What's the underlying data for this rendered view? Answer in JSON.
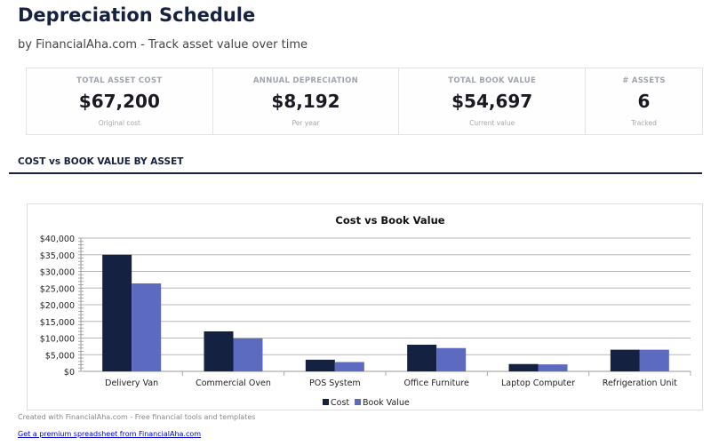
{
  "header": {
    "title": "Depreciation Schedule",
    "subtitle": "by FinancialAha.com - Track asset value over time"
  },
  "kpis": [
    {
      "label": "TOTAL ASSET COST",
      "value": "$67,200",
      "sub": "Original cost"
    },
    {
      "label": "ANNUAL DEPRECIATION",
      "value": "$8,192",
      "sub": "Per year"
    },
    {
      "label": "TOTAL BOOK VALUE",
      "value": "$54,697",
      "sub": "Current value"
    },
    {
      "label": "# ASSETS",
      "value": "6",
      "sub": "Tracked"
    }
  ],
  "section_title": "COST vs BOOK VALUE BY ASSET",
  "chart_data": {
    "type": "bar",
    "title": "Cost vs Book Value",
    "categories": [
      "Delivery Van",
      "Commercial Oven",
      "POS System",
      "Office Furniture",
      "Laptop Computer",
      "Refrigeration Unit"
    ],
    "series": [
      {
        "name": "Cost",
        "values": [
          35000,
          12000,
          3500,
          8000,
          2200,
          6500
        ],
        "color": "#142140"
      },
      {
        "name": "Book Value",
        "values": [
          26400,
          9900,
          2800,
          7000,
          2100,
          6497
        ],
        "color": "#5c6bc0"
      }
    ],
    "ylim": [
      0,
      40000
    ],
    "yticks": [
      "$0",
      "$5,000",
      "$10,000",
      "$15,000",
      "$20,000",
      "$25,000",
      "$30,000",
      "$35,000",
      "$40,000"
    ],
    "grid": true,
    "legend": "bottom"
  },
  "footer": {
    "credit": "Created with FinancialAha.com - Free financial tools and templates",
    "link": "Get a premium spreadsheet from FinancialAha.com"
  }
}
